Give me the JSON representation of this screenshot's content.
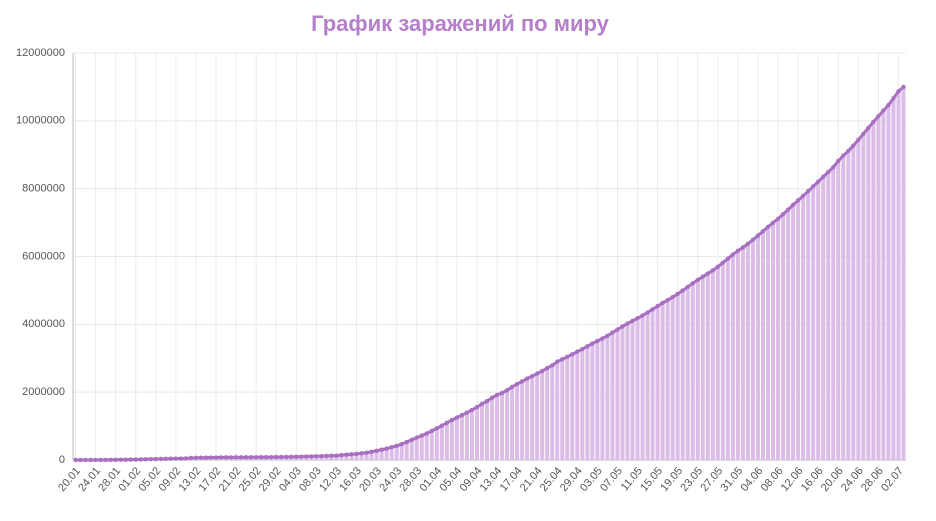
{
  "chart_data": {
    "type": "bar_line",
    "title": "График заражений по миру",
    "categories": [
      "20.01",
      null,
      null,
      null,
      "24.01",
      null,
      null,
      null,
      "28.01",
      null,
      null,
      null,
      "01.02",
      null,
      null,
      null,
      "05.02",
      null,
      null,
      null,
      "09.02",
      null,
      null,
      null,
      "13.02",
      null,
      null,
      null,
      "17.02",
      null,
      null,
      null,
      "21.02",
      null,
      null,
      null,
      "25.02",
      null,
      null,
      null,
      "29.02",
      null,
      null,
      null,
      "04.03",
      null,
      null,
      null,
      "08.03",
      null,
      null,
      null,
      "12.03",
      null,
      null,
      null,
      "16.03",
      null,
      null,
      null,
      "20.03",
      null,
      null,
      null,
      "24.03",
      null,
      null,
      null,
      "28.03",
      null,
      null,
      null,
      "01.04",
      null,
      null,
      null,
      "05.04",
      null,
      null,
      null,
      "09.04",
      null,
      null,
      null,
      "13.04",
      null,
      null,
      null,
      "17.04",
      null,
      null,
      null,
      "21.04",
      null,
      null,
      null,
      "25.04",
      null,
      null,
      null,
      "29.04",
      null,
      null,
      null,
      "03.05",
      null,
      null,
      null,
      "07.05",
      null,
      null,
      null,
      "11.05",
      null,
      null,
      null,
      "15.05",
      null,
      null,
      null,
      "19.05",
      null,
      null,
      null,
      "23.05",
      null,
      null,
      null,
      "27.05",
      null,
      null,
      null,
      "31.05",
      null,
      null,
      null,
      "04.06",
      null,
      null,
      null,
      "08.06",
      null,
      null,
      null,
      "12.06",
      null,
      null,
      null,
      "16.06",
      null,
      null,
      null,
      "20.06",
      null,
      null,
      null,
      "24.06",
      null,
      null,
      null,
      "28.06",
      null,
      null,
      null,
      "02.07",
      null
    ],
    "values": [
      300,
      450,
      600,
      800,
      1000,
      2000,
      2800,
      4500,
      6000,
      7800,
      9800,
      11900,
      14500,
      17400,
      20600,
      24500,
      28300,
      31500,
      34900,
      37600,
      40500,
      43100,
      45200,
      60300,
      64400,
      67100,
      69200,
      71300,
      73300,
      75200,
      75700,
      76700,
      77800,
      78600,
      78900,
      79600,
      80400,
      81400,
      82700,
      84100,
      86000,
      88400,
      90300,
      92800,
      95100,
      98000,
      101800,
      105800,
      109800,
      113600,
      118600,
      125900,
      128300,
      145200,
      156100,
      167500,
      181600,
      197100,
      214900,
      242500,
      272200,
      304500,
      336000,
      378200,
      418000,
      467600,
      529600,
      593300,
      660700,
      720100,
      782400,
      857600,
      932600,
      1013200,
      1095900,
      1176100,
      1249800,
      1321500,
      1396400,
      1475900,
      1558800,
      1652300,
      1734900,
      1834800,
      1917300,
      1976200,
      2056000,
      2152400,
      2240200,
      2317800,
      2401400,
      2472200,
      2549100,
      2623400,
      2708900,
      2790800,
      2896700,
      2971500,
      3041700,
      3116400,
      3193900,
      3272200,
      3349800,
      3434600,
      3506200,
      3583000,
      3662700,
      3755300,
      3845700,
      3939200,
      4024000,
      4101700,
      4179500,
      4263100,
      4347900,
      4442200,
      4538300,
      4630100,
      4713200,
      4801100,
      4897500,
      4996500,
      5102400,
      5209800,
      5307000,
      5404100,
      5496800,
      5589600,
      5697300,
      5817400,
      5934900,
      6057900,
      6166900,
      6266400,
      6372500,
      6494200,
      6617600,
      6744500,
      6872400,
      6993700,
      7110400,
      7244300,
      7381500,
      7520500,
      7655200,
      7785700,
      7926400,
      8064500,
      8206800,
      8348400,
      8490700,
      8632900,
      8816100,
      8974100,
      9111400,
      9267000,
      9440700,
      9614500,
      9792100,
      9967500,
      10136100,
      10302900,
      10465700,
      10667200,
      10871500,
      11000000
    ],
    "color": "#dcbde8",
    "line_color": "#a970c2",
    "title_color": "#b57fc9",
    "ylim": [
      0,
      12000000
    ],
    "yticks": [
      0,
      2000000,
      4000000,
      6000000,
      8000000,
      10000000,
      12000000
    ],
    "grid": true
  }
}
